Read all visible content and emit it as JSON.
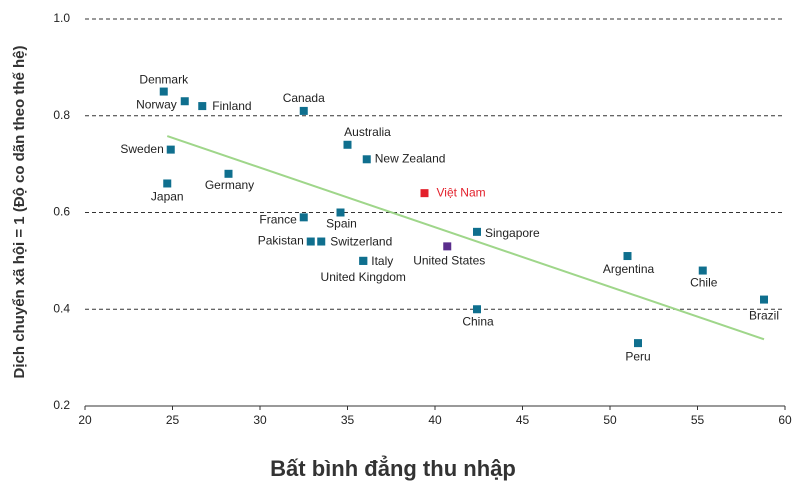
{
  "chart_data": {
    "type": "scatter",
    "x_label": "Bất bình đẳng thu nhập",
    "y_label": "Dịch chuyển xã hội = 1 (Độ co dãn theo thế hệ)",
    "xlim": [
      20,
      60
    ],
    "xticks": [
      20,
      25,
      30,
      35,
      40,
      45,
      50,
      55,
      60
    ],
    "ylim": [
      0.2,
      1.0
    ],
    "yticks": [
      0.2,
      0.4,
      0.6,
      0.8,
      {
        "value": 1,
        "label": "1.0"
      }
    ],
    "grid": true,
    "points": {
      "labels": [
        "Denmark",
        "Norway",
        "Finland",
        "Canada",
        "Sweden",
        "Japan",
        "Germany",
        "Australia",
        "New Zealand",
        "Việt Nam",
        "France",
        "Spain",
        "Singapore",
        "Pakistan",
        "Switzerland",
        "United States",
        "Italy",
        "United Kingdom",
        "Argentina",
        "Chile",
        "Brazil",
        "China",
        "Peru"
      ],
      "x": [
        24.5,
        25.7,
        26.7,
        32.5,
        24.9,
        24.7,
        28.2,
        35.0,
        36.1,
        39.4,
        32.5,
        34.6,
        42.4,
        32.9,
        33.5,
        40.7,
        35.9,
        35.9,
        51.0,
        55.3,
        58.8,
        42.4,
        51.6
      ],
      "y": [
        0.85,
        0.83,
        0.82,
        0.81,
        0.73,
        0.66,
        0.68,
        0.74,
        0.71,
        0.64,
        0.59,
        0.6,
        0.56,
        0.54,
        0.54,
        0.53,
        0.5,
        0.5,
        0.51,
        0.48,
        0.42,
        0.4,
        0.33
      ],
      "colors": [
        "#0f6f8e",
        "#0f6f8e",
        "#0f6f8e",
        "#0f6f8e",
        "#0f6f8e",
        "#0f6f8e",
        "#0f6f8e",
        "#0f6f8e",
        "#0f6f8e",
        "#e3202b",
        "#0f6f8e",
        "#0f6f8e",
        "#0f6f8e",
        "#0f6f8e",
        "#0f6f8e",
        "#5a2d8c",
        "#0f6f8e",
        "#0f6f8e",
        "#0f6f8e",
        "#0f6f8e",
        "#0f6f8e",
        "#0f6f8e",
        "#0f6f8e"
      ]
    },
    "trendline": {
      "x": [
        24.7,
        58.8
      ],
      "y": [
        0.758,
        0.338
      ],
      "color": "#9fd68a"
    }
  }
}
